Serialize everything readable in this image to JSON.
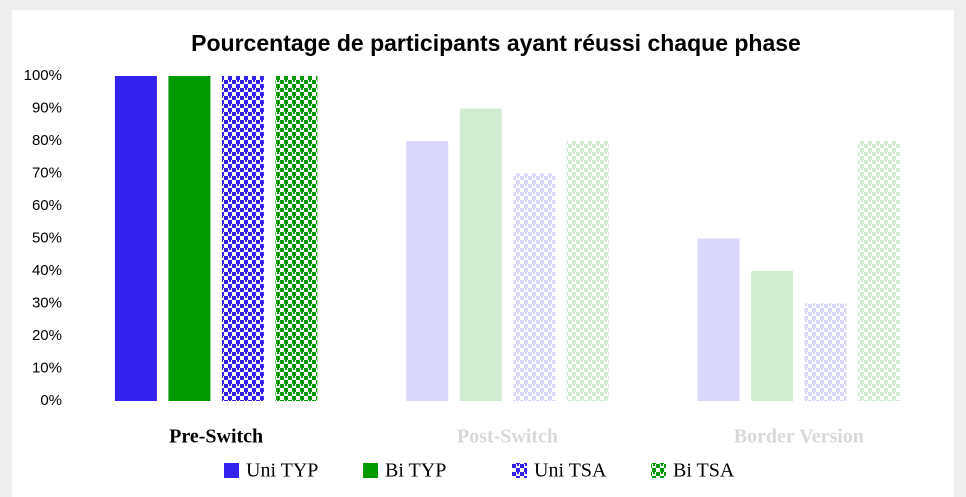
{
  "chart_data": {
    "type": "bar",
    "title": "Pourcentage de participants ayant réussi chaque phase",
    "categories": [
      "Pre-Switch",
      "Post-Switch",
      "Border Version"
    ],
    "highlight": "Pre-Switch",
    "series": [
      {
        "name": "Uni TYP",
        "color": "#3322ee",
        "values": [
          100,
          80,
          50
        ]
      },
      {
        "name": "Bi TYP",
        "color": "#009a00",
        "values": [
          100,
          90,
          40
        ]
      },
      {
        "name": "Uni TSA",
        "color": "#3322ee",
        "pattern": "checker",
        "values": [
          100,
          70,
          30
        ]
      },
      {
        "name": "Bi TSA",
        "color": "#009a00",
        "pattern": "checker",
        "values": [
          100,
          80,
          80
        ]
      }
    ],
    "ylim": [
      0,
      100
    ],
    "yticks": [
      {
        "value": 0,
        "label": "0%"
      },
      {
        "value": 10,
        "label": "10%"
      },
      {
        "value": 20,
        "label": "20%"
      },
      {
        "value": 30,
        "label": "30%"
      },
      {
        "value": 40,
        "label": "40%"
      },
      {
        "value": 50,
        "label": "50%"
      },
      {
        "value": 60,
        "label": "60%"
      },
      {
        "value": 70,
        "label": "70%"
      },
      {
        "value": 80,
        "label": "80%"
      },
      {
        "value": 90,
        "label": "90%"
      },
      {
        "value": 100,
        "label": "100%"
      }
    ],
    "grid": false
  }
}
